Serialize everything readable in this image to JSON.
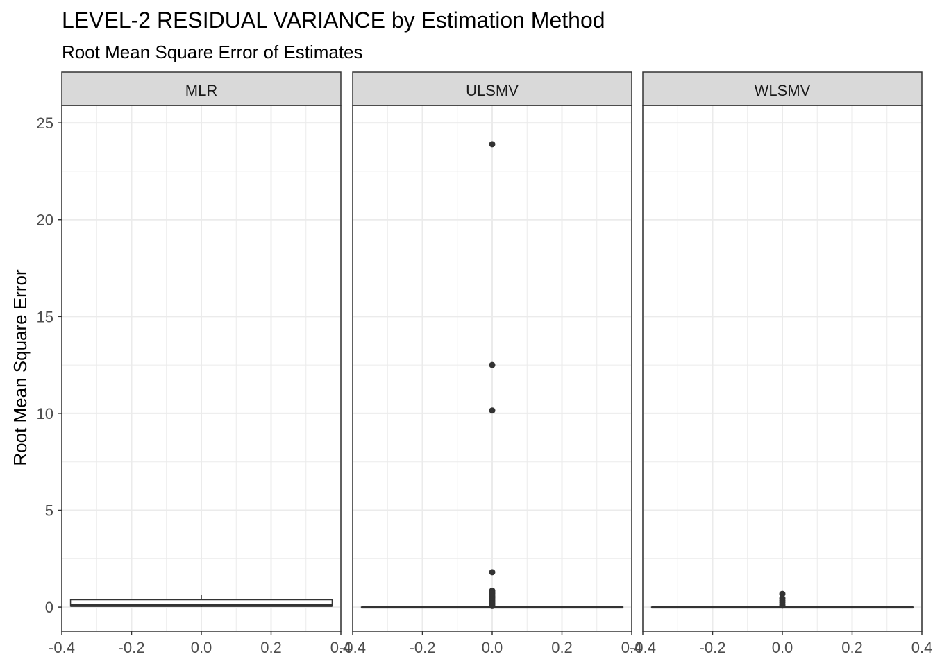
{
  "chart_data": {
    "type": "boxplot",
    "title": "LEVEL-2 RESIDUAL VARIANCE by Estimation Method",
    "subtitle": "Root Mean Square Error of Estimates",
    "ylabel": "Root Mean Square Error",
    "xlabel": "",
    "ylim": [
      -1.25,
      25.9
    ],
    "xlim": [
      -0.4,
      0.4
    ],
    "yticks": [
      0,
      5,
      10,
      15,
      20,
      25
    ],
    "xticks": [
      -0.4,
      -0.2,
      0.0,
      0.2,
      0.4
    ],
    "xtick_labels": [
      "-0.4",
      "-0.2",
      "0.0",
      "0.2",
      "0.4"
    ],
    "grid": true,
    "colors": {
      "strip_fill": "#d9d9d9",
      "panel_border": "#333333",
      "grid": "#ebebeb",
      "box": "#333333"
    },
    "panels": [
      {
        "name": "MLR",
        "box": {
          "q1": 0.05,
          "median": 0.08,
          "q3": 0.38,
          "whisker_low": 0.0,
          "whisker_high": 0.62
        },
        "outliers": []
      },
      {
        "name": "ULSMV",
        "box": {
          "q1": 0.0,
          "median": 0.0,
          "q3": 0.0,
          "whisker_low": 0.0,
          "whisker_high": 0.0
        },
        "outliers": [
          23.9,
          12.5,
          10.15,
          1.8,
          0.85,
          0.78,
          0.7,
          0.62,
          0.55,
          0.48,
          0.42,
          0.35,
          0.28,
          0.2,
          0.12,
          0.06
        ]
      },
      {
        "name": "WLSMV",
        "box": {
          "q1": 0.0,
          "median": 0.0,
          "q3": 0.0,
          "whisker_low": 0.0,
          "whisker_high": 0.0
        },
        "outliers": [
          0.68,
          0.45,
          0.35,
          0.25,
          0.15,
          0.08
        ]
      }
    ]
  }
}
